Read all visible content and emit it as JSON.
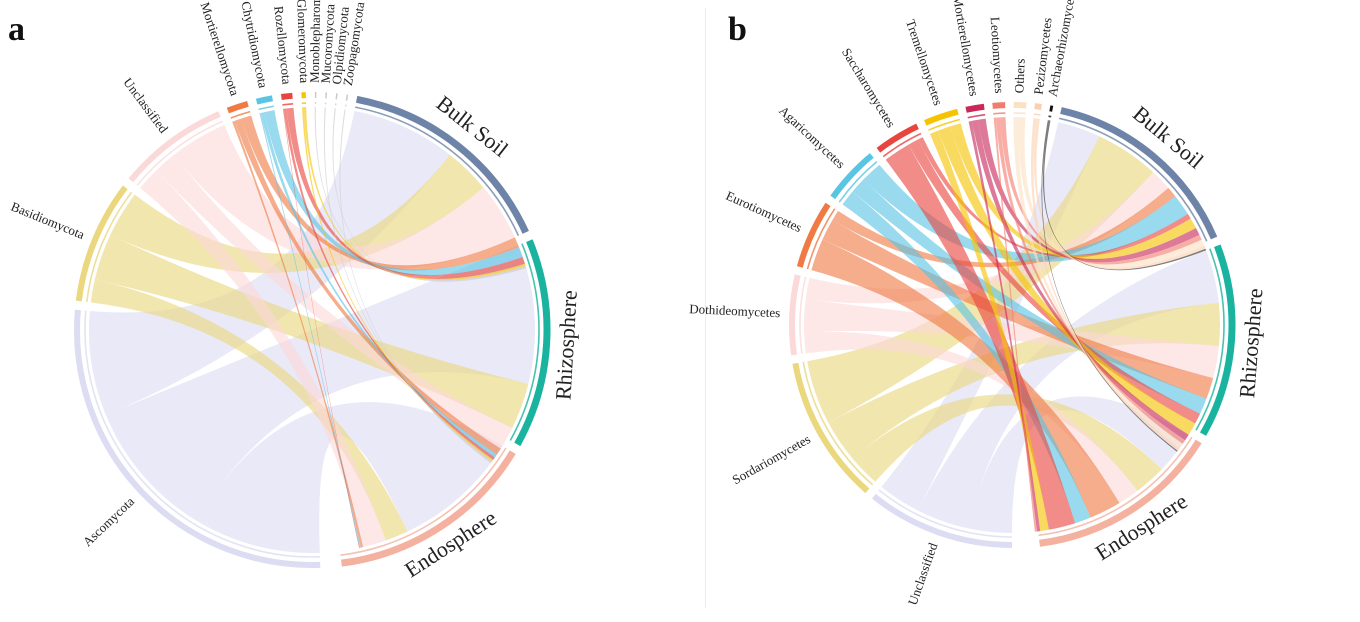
{
  "panels": [
    {
      "id": "a",
      "letter": "a",
      "groups": [
        {
          "name": "Ascomycota",
          "color": "#dcdcf2",
          "kind": "taxon",
          "size": 32
        },
        {
          "name": "Basidiomycota",
          "color": "#ead77e",
          "kind": "taxon",
          "size": 10
        },
        {
          "name": "Unclassified",
          "color": "#fbd9d9",
          "kind": "taxon",
          "size": 9
        },
        {
          "name": "Mortierellomycota",
          "color": "#ef7a44",
          "kind": "taxon",
          "size": 1.7
        },
        {
          "name": "Chytridiomycota",
          "color": "#5ac4e3",
          "kind": "taxon",
          "size": 1.3
        },
        {
          "name": "Rozellomycota",
          "color": "#e9453f",
          "kind": "taxon",
          "size": 0.9
        },
        {
          "name": "Glomeromycota",
          "color": "#f5c300",
          "kind": "taxon",
          "size": 0.35
        },
        {
          "name": "Monoblepharomycota",
          "color": "#c9c9c9",
          "kind": "taxon",
          "size": 0.12
        },
        {
          "name": "Mucoromycota",
          "color": "#c9c9c9",
          "kind": "taxon",
          "size": 0.12
        },
        {
          "name": "Olpidiomycota",
          "color": "#c9c9c9",
          "kind": "taxon",
          "size": 0.12
        },
        {
          "name": "Zoopagomycota",
          "color": "#c9c9c9",
          "kind": "taxon",
          "size": 0.12
        },
        {
          "name": "Bulk Soil",
          "color": "#6d84a8",
          "kind": "sample",
          "size": 18
        },
        {
          "name": "Rhizosphere",
          "color": "#1ab3a0",
          "kind": "sample",
          "size": 17
        },
        {
          "name": "Endosphere",
          "color": "#f4b19f",
          "kind": "sample",
          "size": 17
        }
      ],
      "flows": [
        [
          "Ascomycota",
          "Endosphere",
          11
        ],
        [
          "Ascomycota",
          "Rhizosphere",
          12
        ],
        [
          "Ascomycota",
          "Bulk Soil",
          9
        ],
        [
          "Basidiomycota",
          "Endosphere",
          2
        ],
        [
          "Basidiomycota",
          "Rhizosphere",
          4
        ],
        [
          "Basidiomycota",
          "Bulk Soil",
          4
        ],
        [
          "Unclassified",
          "Endosphere",
          2
        ],
        [
          "Unclassified",
          "Rhizosphere",
          2
        ],
        [
          "Unclassified",
          "Bulk Soil",
          5
        ],
        [
          "Mortierellomycota",
          "Endosphere",
          0.2
        ],
        [
          "Mortierellomycota",
          "Rhizosphere",
          0.6
        ],
        [
          "Mortierellomycota",
          "Bulk Soil",
          0.9
        ],
        [
          "Chytridiomycota",
          "Endosphere",
          0.1
        ],
        [
          "Chytridiomycota",
          "Rhizosphere",
          0.3
        ],
        [
          "Chytridiomycota",
          "Bulk Soil",
          0.9
        ],
        [
          "Rozellomycota",
          "Endosphere",
          0.05
        ],
        [
          "Rozellomycota",
          "Rhizosphere",
          0.25
        ],
        [
          "Rozellomycota",
          "Bulk Soil",
          0.6
        ],
        [
          "Glomeromycota",
          "Rhizosphere",
          0.15
        ],
        [
          "Glomeromycota",
          "Bulk Soil",
          0.2
        ],
        [
          "Monoblepharomycota",
          "Bulk Soil",
          0.1
        ],
        [
          "Mucoromycota",
          "Rhizosphere",
          0.1
        ],
        [
          "Olpidiomycota",
          "Bulk Soil",
          0.1
        ],
        [
          "Zoopagomycota",
          "Rhizosphere",
          0.1
        ]
      ]
    },
    {
      "id": "b",
      "letter": "b",
      "groups": [
        {
          "name": "Unclassified",
          "color": "#dcdcf2",
          "kind": "taxon",
          "size": 13
        },
        {
          "name": "Sordariomycetes",
          "color": "#ead77e",
          "kind": "taxon",
          "size": 13
        },
        {
          "name": "Dothideomycetes",
          "color": "#fbd9d9",
          "kind": "taxon",
          "size": 7
        },
        {
          "name": "Eurotiomycetes",
          "color": "#ef7a44",
          "kind": "taxon",
          "size": 6
        },
        {
          "name": "Agaricomycetes",
          "color": "#5ac4e3",
          "kind": "taxon",
          "size": 5
        },
        {
          "name": "Saccharomycetes",
          "color": "#e9453f",
          "kind": "taxon",
          "size": 4
        },
        {
          "name": "Tremellomycetes",
          "color": "#f5c300",
          "kind": "taxon",
          "size": 3
        },
        {
          "name": "Mortierellomycetes",
          "color": "#c8285a",
          "kind": "taxon",
          "size": 1.6
        },
        {
          "name": "Leotiomycetes",
          "color": "#f47a6e",
          "kind": "taxon",
          "size": 1.1
        },
        {
          "name": "Others",
          "color": "#fbe1c4",
          "kind": "taxon",
          "size": 1.1
        },
        {
          "name": "Pezizomycetes",
          "color": "#fbd0b0",
          "kind": "taxon",
          "size": 0.6
        },
        {
          "name": "Archaeorhizomycetes",
          "color": "#111111",
          "kind": "taxon",
          "size": 0.25
        },
        {
          "name": "Bulk Soil",
          "color": "#6d84a8",
          "kind": "sample",
          "size": 18
        },
        {
          "name": "Rhizosphere",
          "color": "#1ab3a0",
          "kind": "sample",
          "size": 17
        },
        {
          "name": "Endosphere",
          "color": "#f4b19f",
          "kind": "sample",
          "size": 17
        }
      ],
      "flows": [
        [
          "Unclassified",
          "Endosphere",
          4
        ],
        [
          "Unclassified",
          "Rhizosphere",
          5
        ],
        [
          "Unclassified",
          "Bulk Soil",
          4
        ],
        [
          "Sordariomycetes",
          "Endosphere",
          3
        ],
        [
          "Sordariomycetes",
          "Rhizosphere",
          4
        ],
        [
          "Sordariomycetes",
          "Bulk Soil",
          6
        ],
        [
          "Dothideomycetes",
          "Endosphere",
          2
        ],
        [
          "Dothideomycetes",
          "Rhizosphere",
          3
        ],
        [
          "Dothideomycetes",
          "Bulk Soil",
          2
        ],
        [
          "Eurotiomycetes",
          "Endosphere",
          3
        ],
        [
          "Eurotiomycetes",
          "Rhizosphere",
          2
        ],
        [
          "Eurotiomycetes",
          "Bulk Soil",
          1
        ],
        [
          "Agaricomycetes",
          "Endosphere",
          1.5
        ],
        [
          "Agaricomycetes",
          "Rhizosphere",
          1.5
        ],
        [
          "Agaricomycetes",
          "Bulk Soil",
          2
        ],
        [
          "Saccharomycetes",
          "Endosphere",
          2.5
        ],
        [
          "Saccharomycetes",
          "Rhizosphere",
          1
        ],
        [
          "Saccharomycetes",
          "Bulk Soil",
          0.5
        ],
        [
          "Tremellomycetes",
          "Endosphere",
          0.8
        ],
        [
          "Tremellomycetes",
          "Rhizosphere",
          1.2
        ],
        [
          "Tremellomycetes",
          "Bulk Soil",
          1
        ],
        [
          "Mortierellomycetes",
          "Endosphere",
          0.3
        ],
        [
          "Mortierellomycetes",
          "Rhizosphere",
          0.6
        ],
        [
          "Mortierellomycetes",
          "Bulk Soil",
          0.7
        ],
        [
          "Leotiomycetes",
          "Endosphere",
          0.2
        ],
        [
          "Leotiomycetes",
          "Rhizosphere",
          0.4
        ],
        [
          "Leotiomycetes",
          "Bulk Soil",
          0.5
        ],
        [
          "Others",
          "Rhizosphere",
          0.5
        ],
        [
          "Others",
          "Bulk Soil",
          0.6
        ],
        [
          "Pezizomycetes",
          "Rhizosphere",
          0.3
        ],
        [
          "Pezizomycetes",
          "Bulk Soil",
          0.3
        ],
        [
          "Archaeorhizomycetes",
          "Rhizosphere",
          0.1
        ],
        [
          "Archaeorhizomycetes",
          "Bulk Soil",
          0.15
        ]
      ]
    }
  ]
}
